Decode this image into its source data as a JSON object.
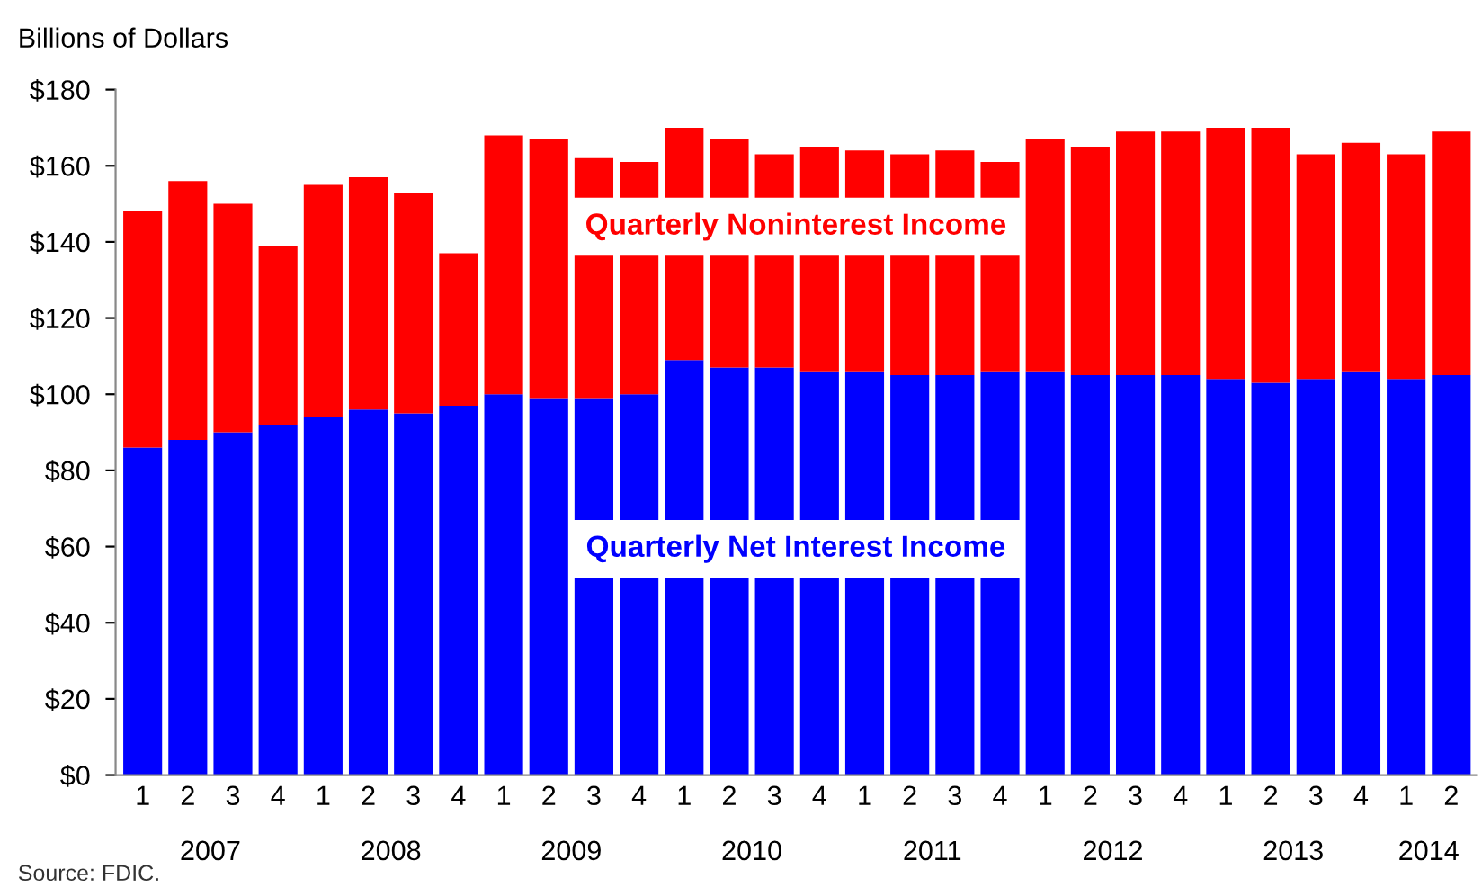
{
  "chart_data": {
    "type": "bar",
    "stacked": true,
    "ylabel": "Billions of Dollars",
    "categories": [
      "1",
      "2",
      "3",
      "4",
      "1",
      "2",
      "3",
      "4",
      "1",
      "2",
      "3",
      "4",
      "1",
      "2",
      "3",
      "4",
      "1",
      "2",
      "3",
      "4",
      "1",
      "2",
      "3",
      "4",
      "1",
      "2",
      "3",
      "4",
      "1",
      "2"
    ],
    "series": [
      {
        "name": "Quarterly Net Interest Income",
        "color": "#0000ff",
        "values": [
          86,
          88,
          90,
          92,
          94,
          96,
          95,
          97,
          100,
          99,
          99,
          100,
          109,
          107,
          107,
          106,
          106,
          105,
          105,
          106,
          106,
          105,
          105,
          105,
          104,
          103,
          104,
          106,
          104,
          105
        ]
      },
      {
        "name": "Quarterly Noninterest Income",
        "color": "#ff0000",
        "values": [
          62,
          68,
          60,
          47,
          61,
          61,
          58,
          40,
          68,
          68,
          63,
          61,
          61,
          60,
          56,
          59,
          58,
          58,
          59,
          55,
          61,
          60,
          64,
          64,
          66,
          67,
          59,
          60,
          59,
          64
        ]
      }
    ],
    "ylim": [
      0,
      180
    ],
    "yticks": [
      {
        "value": 0,
        "label": "$0"
      },
      {
        "value": 20,
        "label": "$20"
      },
      {
        "value": 40,
        "label": "$40"
      },
      {
        "value": 60,
        "label": "$60"
      },
      {
        "value": 80,
        "label": "$80"
      },
      {
        "value": 100,
        "label": "$100"
      },
      {
        "value": 120,
        "label": "$120"
      },
      {
        "value": 140,
        "label": "$140"
      },
      {
        "value": 160,
        "label": "$160"
      },
      {
        "value": 180,
        "label": "$180"
      }
    ],
    "grid": false,
    "legend": false,
    "annotations": [
      "2007",
      "2008",
      "2009",
      "2010",
      "2011",
      "2012",
      "2013",
      "2014",
      "Source: FDIC."
    ]
  }
}
